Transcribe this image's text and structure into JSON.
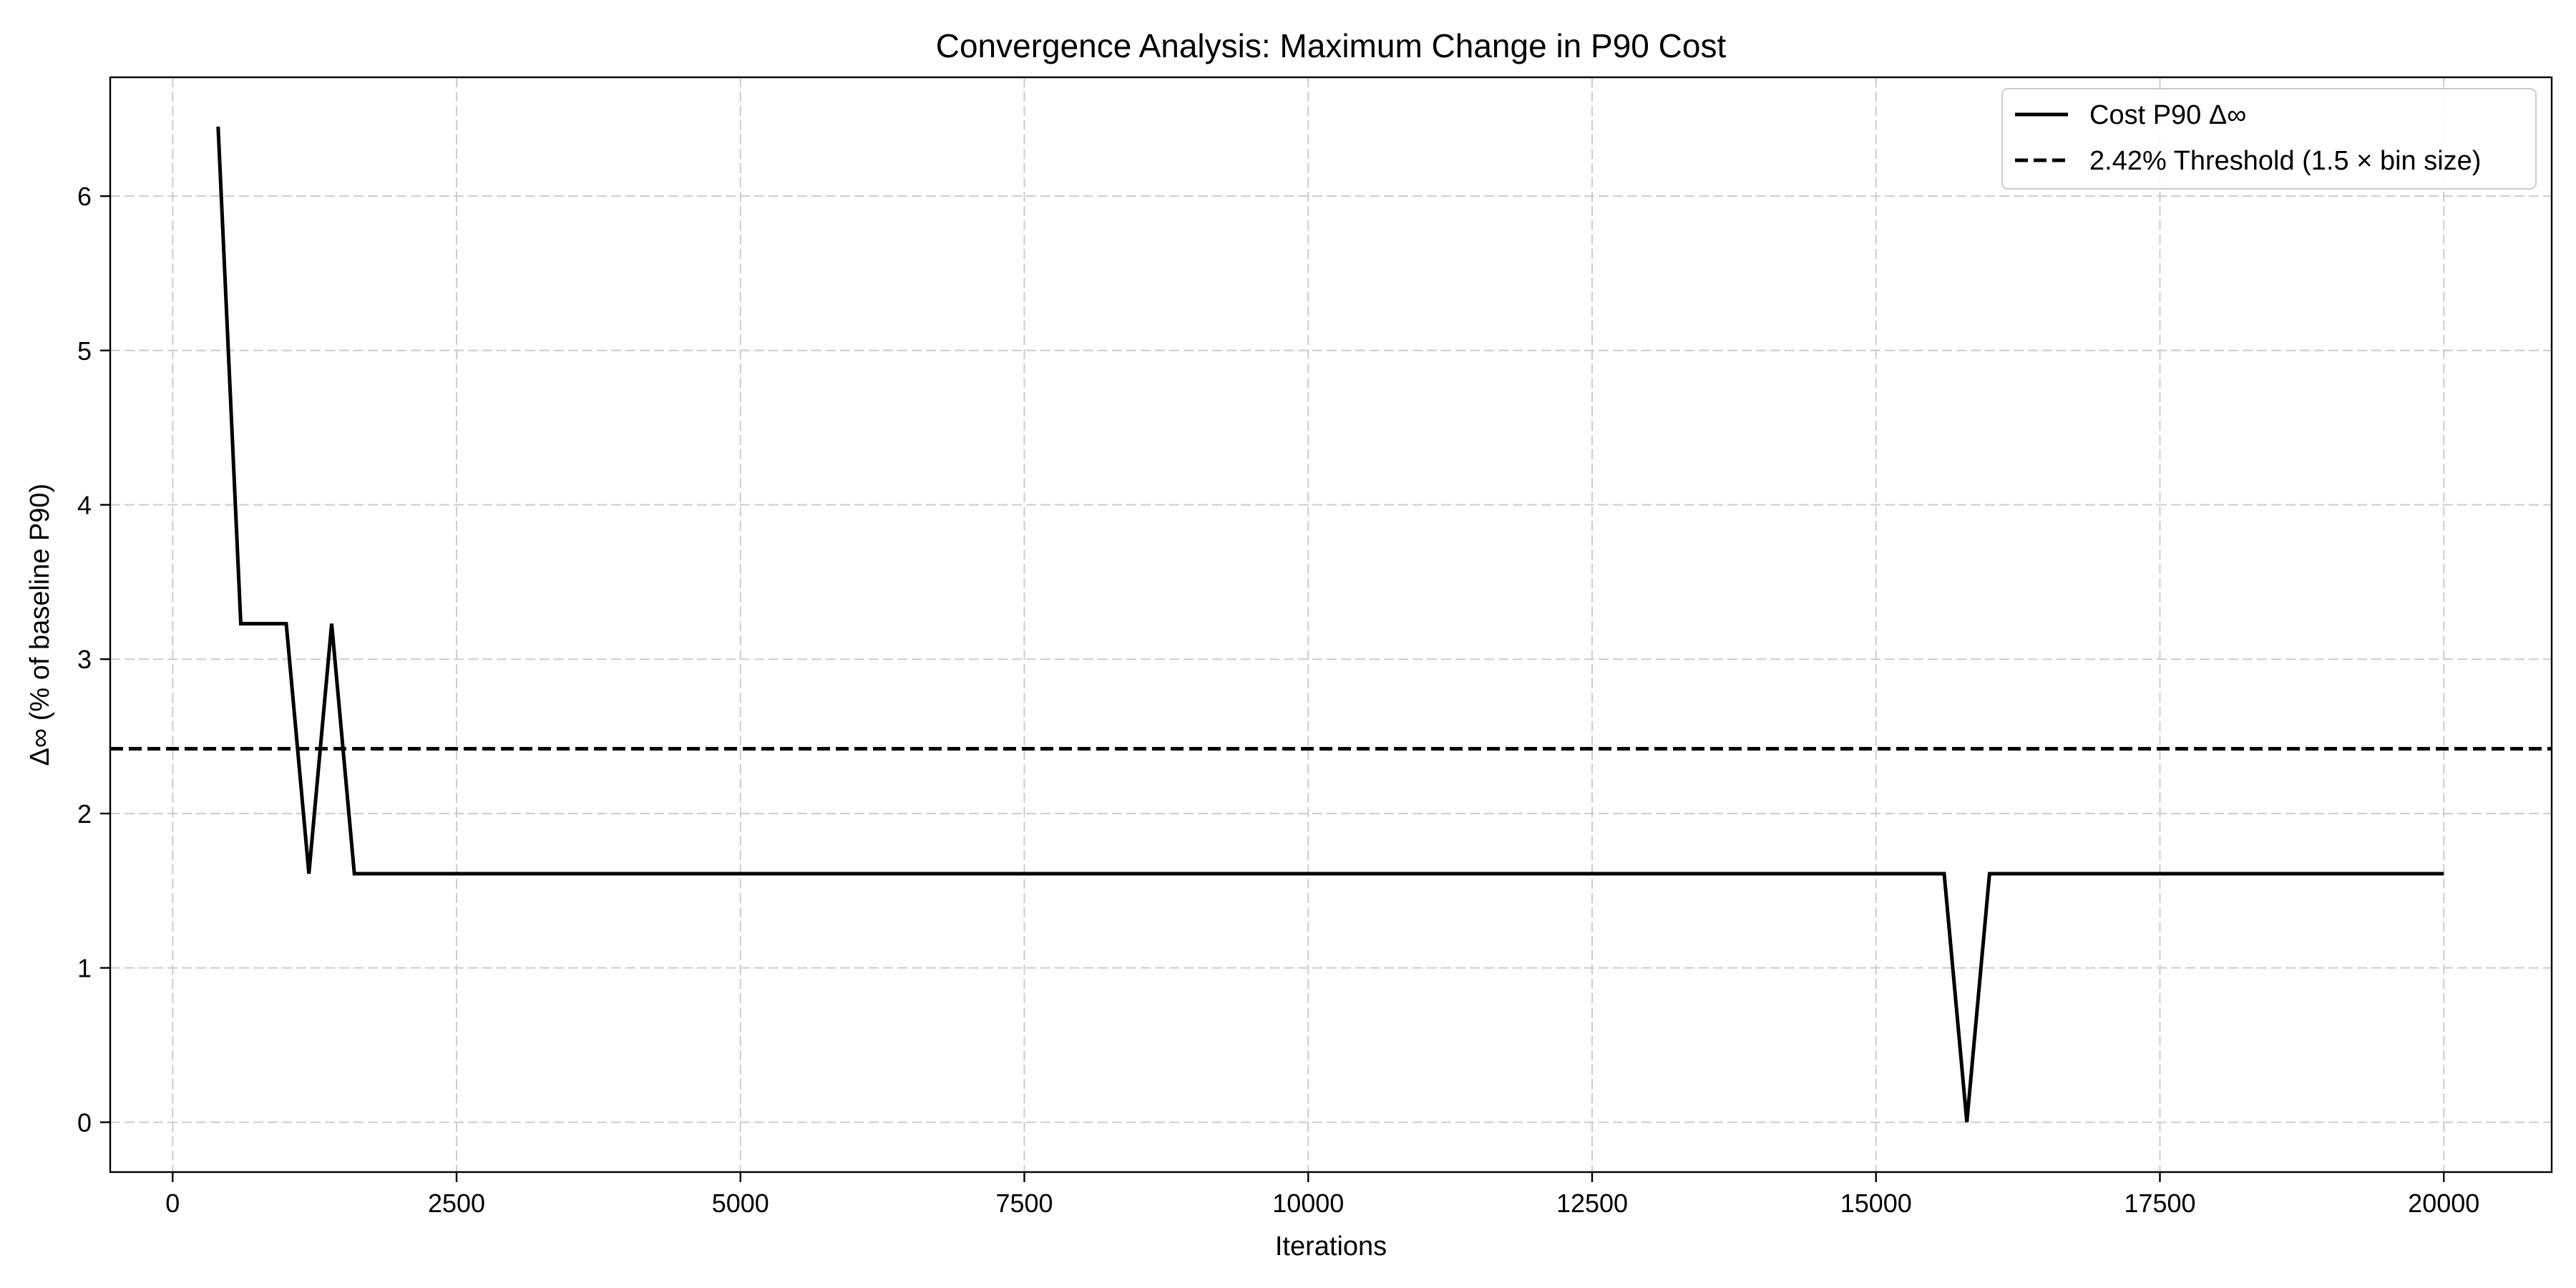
{
  "chart_data": {
    "type": "line",
    "title": "Convergence Analysis: Maximum Change in P90 Cost",
    "xlabel": "Iterations",
    "ylabel": "Δ∞ (% of baseline P90)",
    "xlim": [
      -550,
      20950
    ],
    "ylim": [
      -0.323,
      6.77
    ],
    "x_ticks": [
      0,
      2500,
      5000,
      7500,
      10000,
      12500,
      15000,
      17500,
      20000
    ],
    "x_tick_labels": [
      "0",
      "2500",
      "5000",
      "7500",
      "10000",
      "12500",
      "15000",
      "17500",
      "20000"
    ],
    "y_ticks": [
      0,
      1,
      2,
      3,
      4,
      5,
      6
    ],
    "y_tick_labels": [
      "0",
      "1",
      "2",
      "3",
      "4",
      "5",
      "6"
    ],
    "grid": true,
    "legend_position": "top-right",
    "series": [
      {
        "name": "Cost P90 Δ∞",
        "style": "solid",
        "color": "#000000",
        "x": [
          400,
          600,
          800,
          1000,
          1200,
          1400,
          1600,
          2000,
          4000,
          6000,
          8000,
          10000,
          12000,
          14000,
          15000,
          15600,
          15800,
          16000,
          17000,
          18000,
          19000,
          20000
        ],
        "y": [
          6.45,
          3.23,
          3.23,
          3.23,
          1.61,
          3.23,
          1.61,
          1.61,
          1.61,
          1.61,
          1.61,
          1.61,
          1.61,
          1.61,
          1.61,
          1.61,
          0.0,
          1.61,
          1.61,
          1.61,
          1.61,
          1.61
        ]
      }
    ],
    "threshold": {
      "name": "2.42% Threshold (1.5 × bin size)",
      "style": "dashed",
      "color": "#000000",
      "y": 2.42
    }
  }
}
